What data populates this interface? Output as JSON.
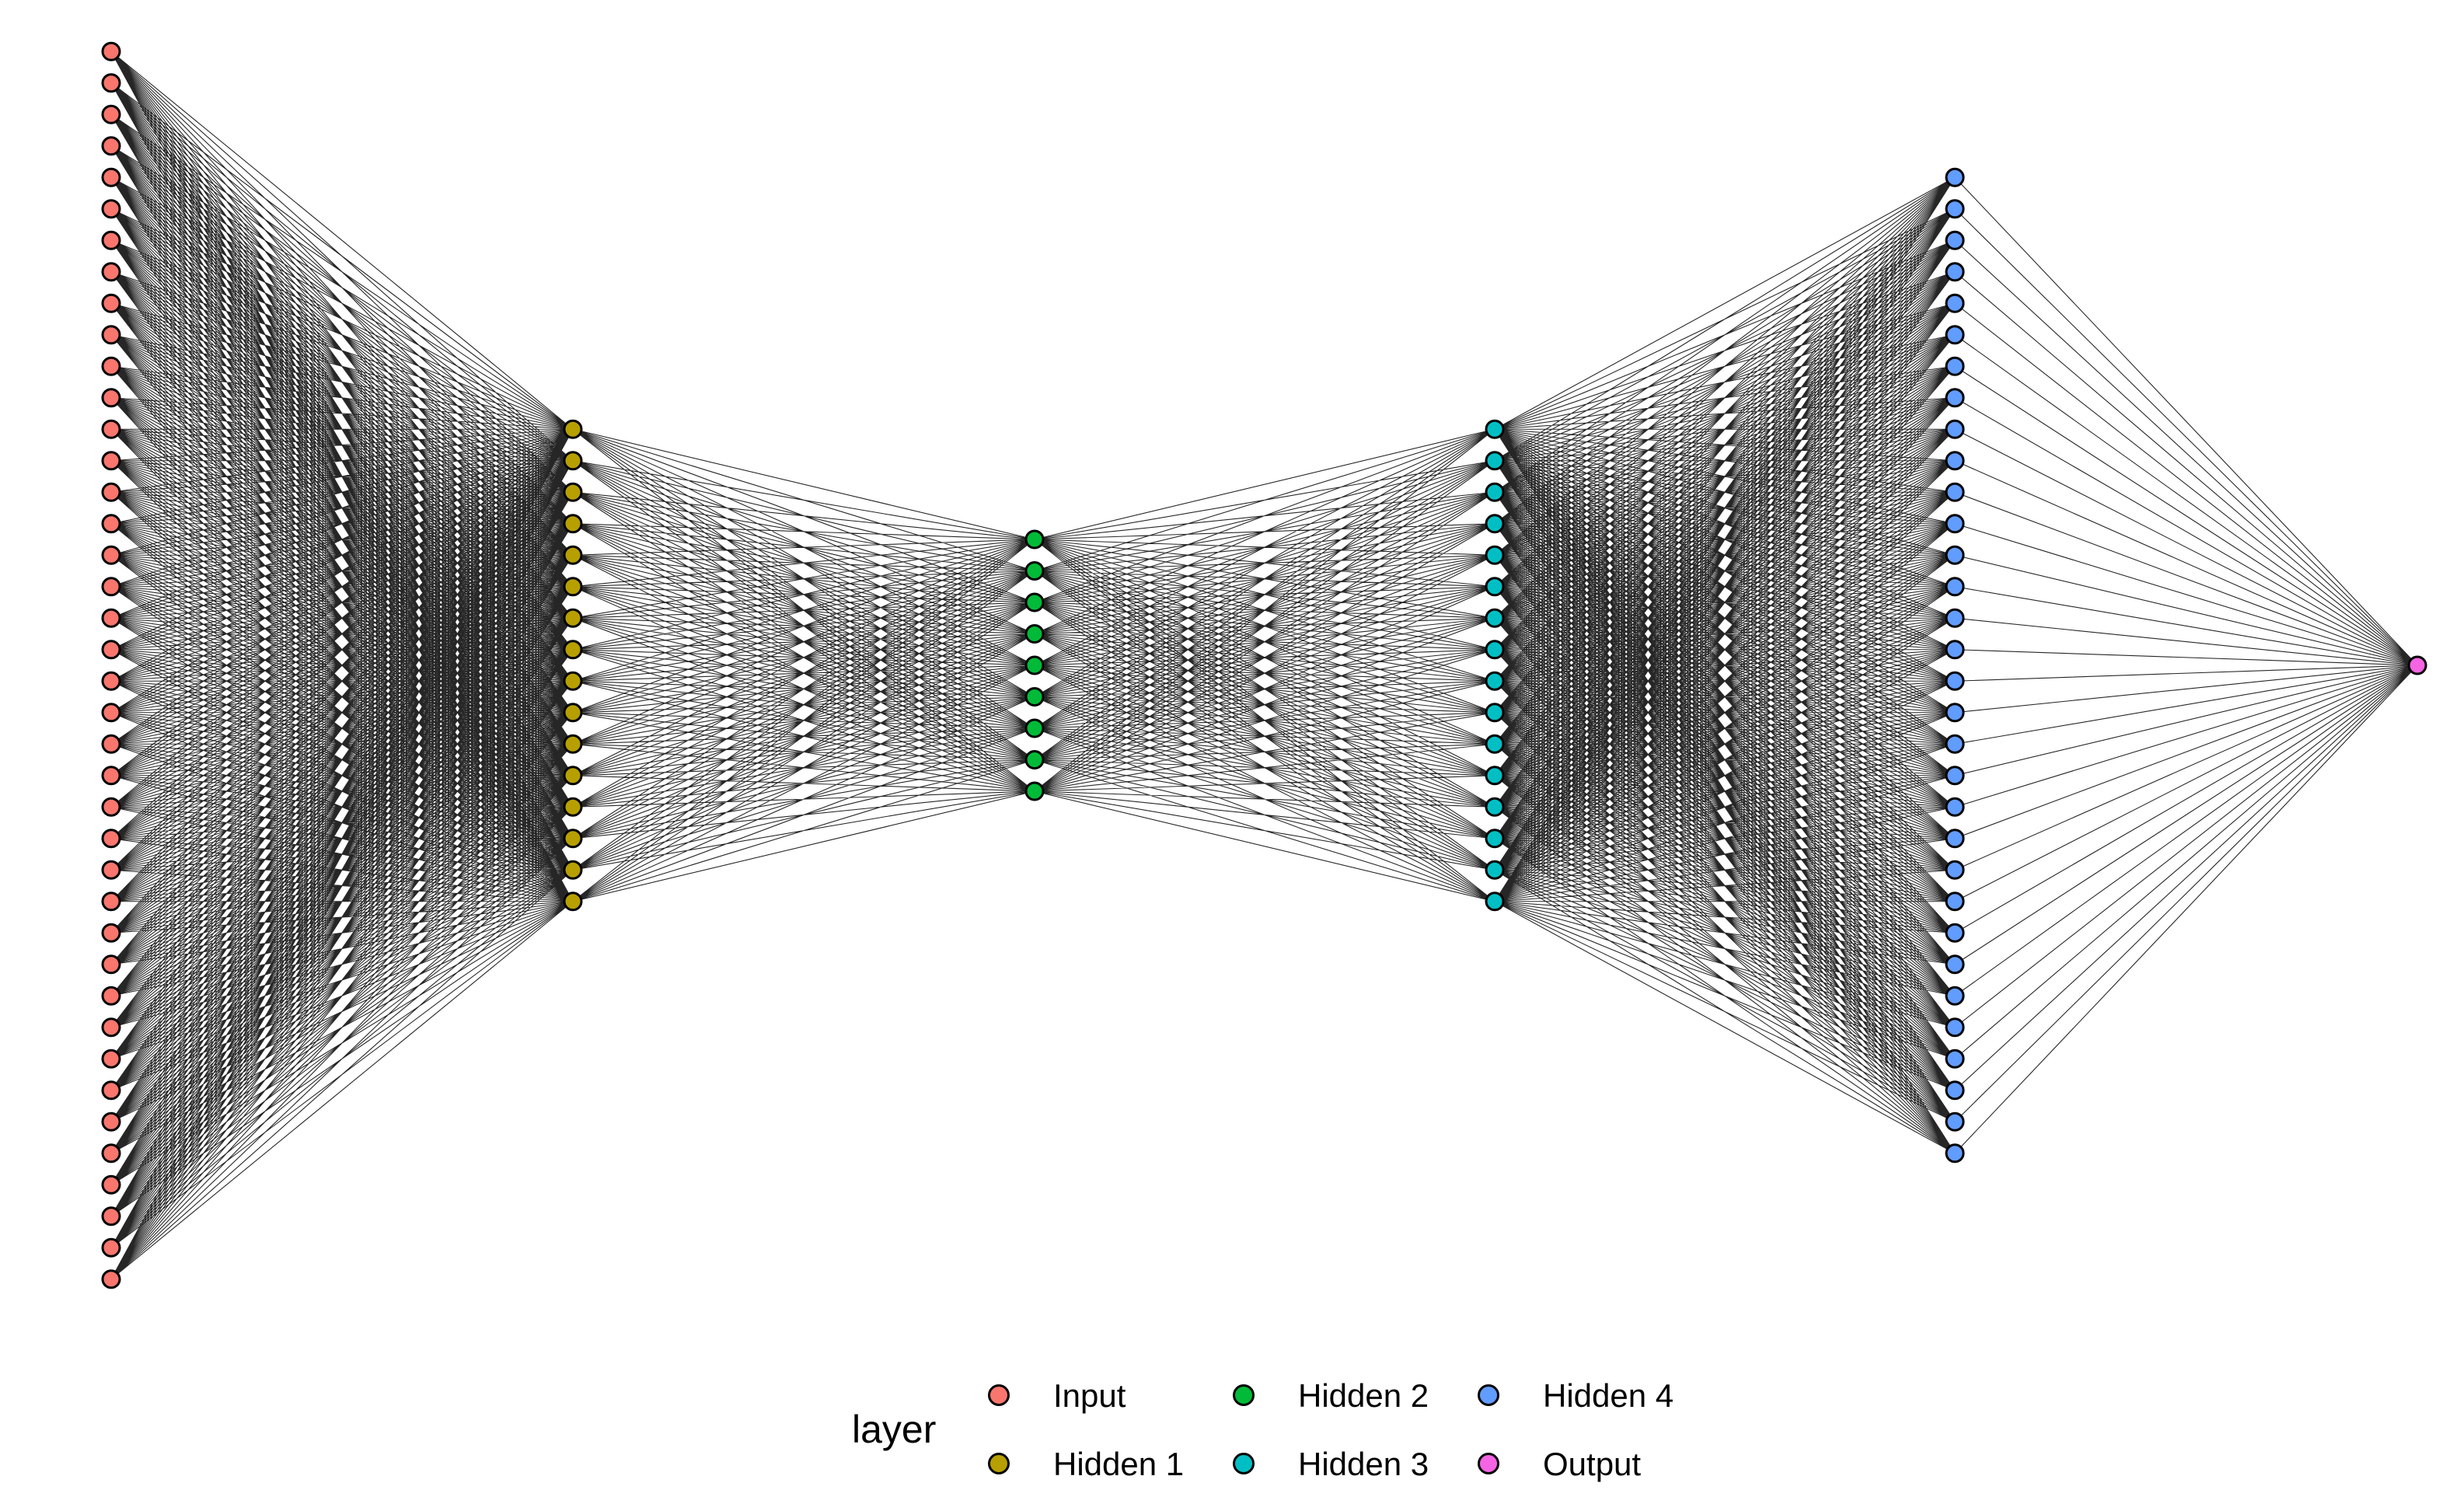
{
  "chart_data": {
    "type": "network",
    "layers": [
      {
        "name": "Input",
        "nodes": 40,
        "color": "#F8766D"
      },
      {
        "name": "Hidden 1",
        "nodes": 16,
        "color": "#B79F00"
      },
      {
        "name": "Hidden 2",
        "nodes": 9,
        "color": "#00BA38"
      },
      {
        "name": "Hidden 3",
        "nodes": 16,
        "color": "#00BFC4"
      },
      {
        "name": "Hidden 4",
        "nodes": 32,
        "color": "#619CFF"
      },
      {
        "name": "Output",
        "nodes": 1,
        "color": "#F564E3"
      }
    ],
    "connections": "fully-connected between adjacent layers",
    "legend": {
      "title": "layer",
      "position": "bottom",
      "columns": 3
    }
  },
  "colors": {
    "edge": "#000000",
    "node_outline": "#000000",
    "background": "#FFFFFF"
  }
}
